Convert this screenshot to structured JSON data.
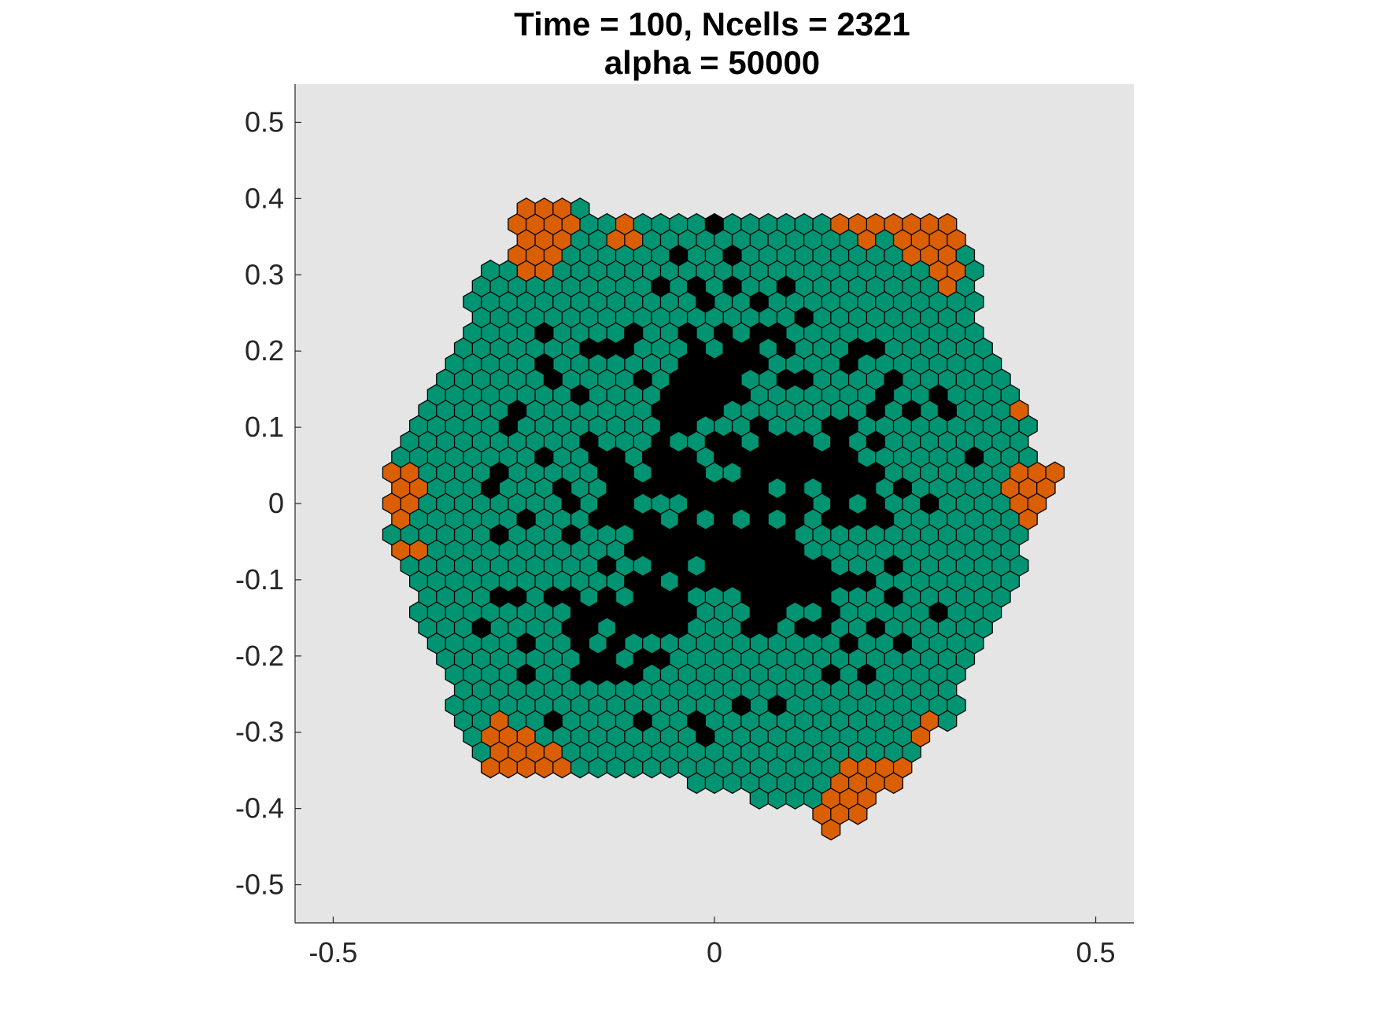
{
  "chart_data": {
    "type": "scatter",
    "title": [
      "Time = 100, Ncells = 2321",
      "alpha = 50000"
    ],
    "xlabel": "",
    "ylabel": "",
    "xlim": [
      -0.55,
      0.55
    ],
    "ylim": [
      -0.55,
      0.55
    ],
    "x_ticks": [
      -0.5,
      0,
      0.5
    ],
    "x_tick_labels": [
      "-0.5",
      "0",
      "0.5"
    ],
    "y_ticks": [
      0.5,
      0.4,
      0.3,
      0.2,
      0.1,
      0,
      -0.1,
      -0.2,
      -0.3,
      -0.4,
      -0.5
    ],
    "y_tick_labels": [
      "0.5",
      "0.4",
      "0.3",
      "0.2",
      "0.1",
      "0",
      "-0.1",
      "-0.2",
      "-0.3",
      "-0.4",
      "-0.5"
    ],
    "grid": false,
    "background_color": "#e5e5e5",
    "marker": "hexagon",
    "cell_spacing": 0.0235,
    "series_colors": {
      "healthy": "#009473",
      "boundary": "#d95f02",
      "dead": "#000000"
    },
    "colony": {
      "outline": [
        [
          -0.245,
          0.39
        ],
        [
          -0.12,
          0.385
        ],
        [
          -0.11,
          0.365
        ],
        [
          0.085,
          0.385
        ],
        [
          0.32,
          0.385
        ],
        [
          0.33,
          0.36
        ],
        [
          0.33,
          0.33
        ],
        [
          0.345,
          0.3
        ],
        [
          0.34,
          0.25
        ],
        [
          0.385,
          0.15
        ],
        [
          0.44,
          0.05
        ],
        [
          0.455,
          0.03
        ],
        [
          0.43,
          -0.01
        ],
        [
          0.41,
          -0.06
        ],
        [
          0.35,
          -0.2
        ],
        [
          0.31,
          -0.28
        ],
        [
          0.245,
          -0.365
        ],
        [
          0.2,
          -0.39
        ],
        [
          0.16,
          -0.45
        ],
        [
          0.12,
          -0.42
        ],
        [
          0.12,
          -0.395
        ],
        [
          0.055,
          -0.395
        ],
        [
          0.035,
          -0.38
        ],
        [
          -0.02,
          -0.385
        ],
        [
          -0.04,
          -0.36
        ],
        [
          -0.25,
          -0.365
        ],
        [
          -0.31,
          -0.355
        ],
        [
          -0.335,
          -0.3
        ],
        [
          -0.36,
          -0.2
        ],
        [
          -0.4,
          -0.12
        ],
        [
          -0.42,
          -0.06
        ],
        [
          -0.44,
          0
        ],
        [
          -0.425,
          0.04
        ],
        [
          -0.39,
          0.1
        ],
        [
          -0.34,
          0.22
        ],
        [
          -0.3,
          0.3
        ],
        [
          -0.27,
          0.33
        ],
        [
          -0.26,
          0.365
        ]
      ],
      "necrotic_core": {
        "center": [
          0.0,
          -0.01
        ],
        "radius": 0.19,
        "fuzz": 0.05
      },
      "boundary_clusters": [
        {
          "center": [
            -0.23,
            0.36
          ],
          "radius": 0.032
        },
        {
          "center": [
            -0.245,
            0.33
          ],
          "radius": 0.022
        },
        {
          "center": [
            -0.12,
            0.355
          ],
          "radius": 0.008
        },
        {
          "center": [
            0.175,
            0.38
          ],
          "radius": 0.008
        },
        {
          "center": [
            0.2,
            0.36
          ],
          "radius": 0.008
        },
        {
          "center": [
            0.28,
            0.355
          ],
          "radius": 0.035
        },
        {
          "center": [
            0.305,
            0.305
          ],
          "radius": 0.018
        },
        {
          "center": [
            0.4,
            0.12
          ],
          "radius": 0.008
        },
        {
          "center": [
            0.42,
            0.015
          ],
          "radius": 0.032
        },
        {
          "center": [
            -0.42,
            0.01
          ],
          "radius": 0.028
        },
        {
          "center": [
            -0.405,
            -0.06
          ],
          "radius": 0.008
        },
        {
          "center": [
            -0.285,
            -0.29
          ],
          "radius": 0.008
        },
        {
          "center": [
            -0.26,
            -0.305
          ],
          "radius": 0.008
        },
        {
          "center": [
            -0.25,
            -0.35
          ],
          "radius": 0.04
        },
        {
          "center": [
            -0.2,
            -0.36
          ],
          "radius": 0.012
        },
        {
          "center": [
            0.19,
            -0.395
          ],
          "radius": 0.04
        },
        {
          "center": [
            0.155,
            -0.42
          ],
          "radius": 0.022
        },
        {
          "center": [
            0.23,
            -0.36
          ],
          "radius": 0.012
        },
        {
          "center": [
            0.28,
            -0.3
          ],
          "radius": 0.008
        }
      ],
      "scattered_dead_points": [
        [
          -0.075,
          0.29
        ],
        [
          0.095,
          0.285
        ],
        [
          0.115,
          0.25
        ],
        [
          -0.01,
          0.27
        ],
        [
          -0.22,
          0.22
        ],
        [
          -0.16,
          0.205
        ],
        [
          -0.13,
          0.205
        ],
        [
          -0.215,
          0.175
        ],
        [
          0.2,
          0.2
        ],
        [
          0.24,
          0.16
        ],
        [
          -0.26,
          0.11
        ],
        [
          0.19,
          0.05
        ],
        [
          -0.285,
          0.015
        ],
        [
          0.25,
          0.015
        ],
        [
          0.28,
          -0.01
        ],
        [
          -0.27,
          -0.12
        ],
        [
          -0.3,
          -0.17
        ],
        [
          0.295,
          -0.145
        ],
        [
          0.2,
          -0.23
        ],
        [
          -0.125,
          -0.23
        ],
        [
          0.15,
          -0.23
        ],
        [
          -0.095,
          -0.29
        ],
        [
          -0.02,
          -0.295
        ],
        [
          0.04,
          -0.27
        ]
      ],
      "scattered_live_in_core": [
        [
          -0.17,
          0.12
        ],
        [
          -0.15,
          0.1
        ],
        [
          -0.14,
          0.08
        ],
        [
          -0.115,
          0.07
        ],
        [
          -0.1,
          0.12
        ],
        [
          -0.045,
          0.09
        ],
        [
          -0.015,
          0.09
        ],
        [
          0.02,
          0.11
        ],
        [
          0.095,
          0.11
        ],
        [
          0.13,
          0.09
        ],
        [
          -0.1,
          0.05
        ],
        [
          -0.01,
          0.05
        ],
        [
          -0.17,
          -0.03
        ],
        [
          -0.14,
          -0.03
        ],
        [
          -0.125,
          -0.07
        ],
        [
          -0.07,
          -0.01
        ],
        [
          -0.05,
          -0.01
        ],
        [
          -0.01,
          -0.03
        ],
        [
          0.08,
          0.03
        ],
        [
          0.12,
          0.02
        ],
        [
          0.145,
          0.0
        ],
        [
          0.13,
          -0.04
        ],
        [
          -0.15,
          -0.1
        ],
        [
          -0.115,
          -0.12
        ],
        [
          -0.03,
          -0.08
        ],
        [
          -0.06,
          -0.095
        ],
        [
          0.11,
          -0.14
        ],
        [
          0.09,
          -0.16
        ],
        [
          -0.01,
          -0.13
        ],
        [
          0.03,
          -0.13
        ],
        [
          0.16,
          -0.07
        ],
        [
          0.19,
          -0.09
        ]
      ]
    }
  }
}
